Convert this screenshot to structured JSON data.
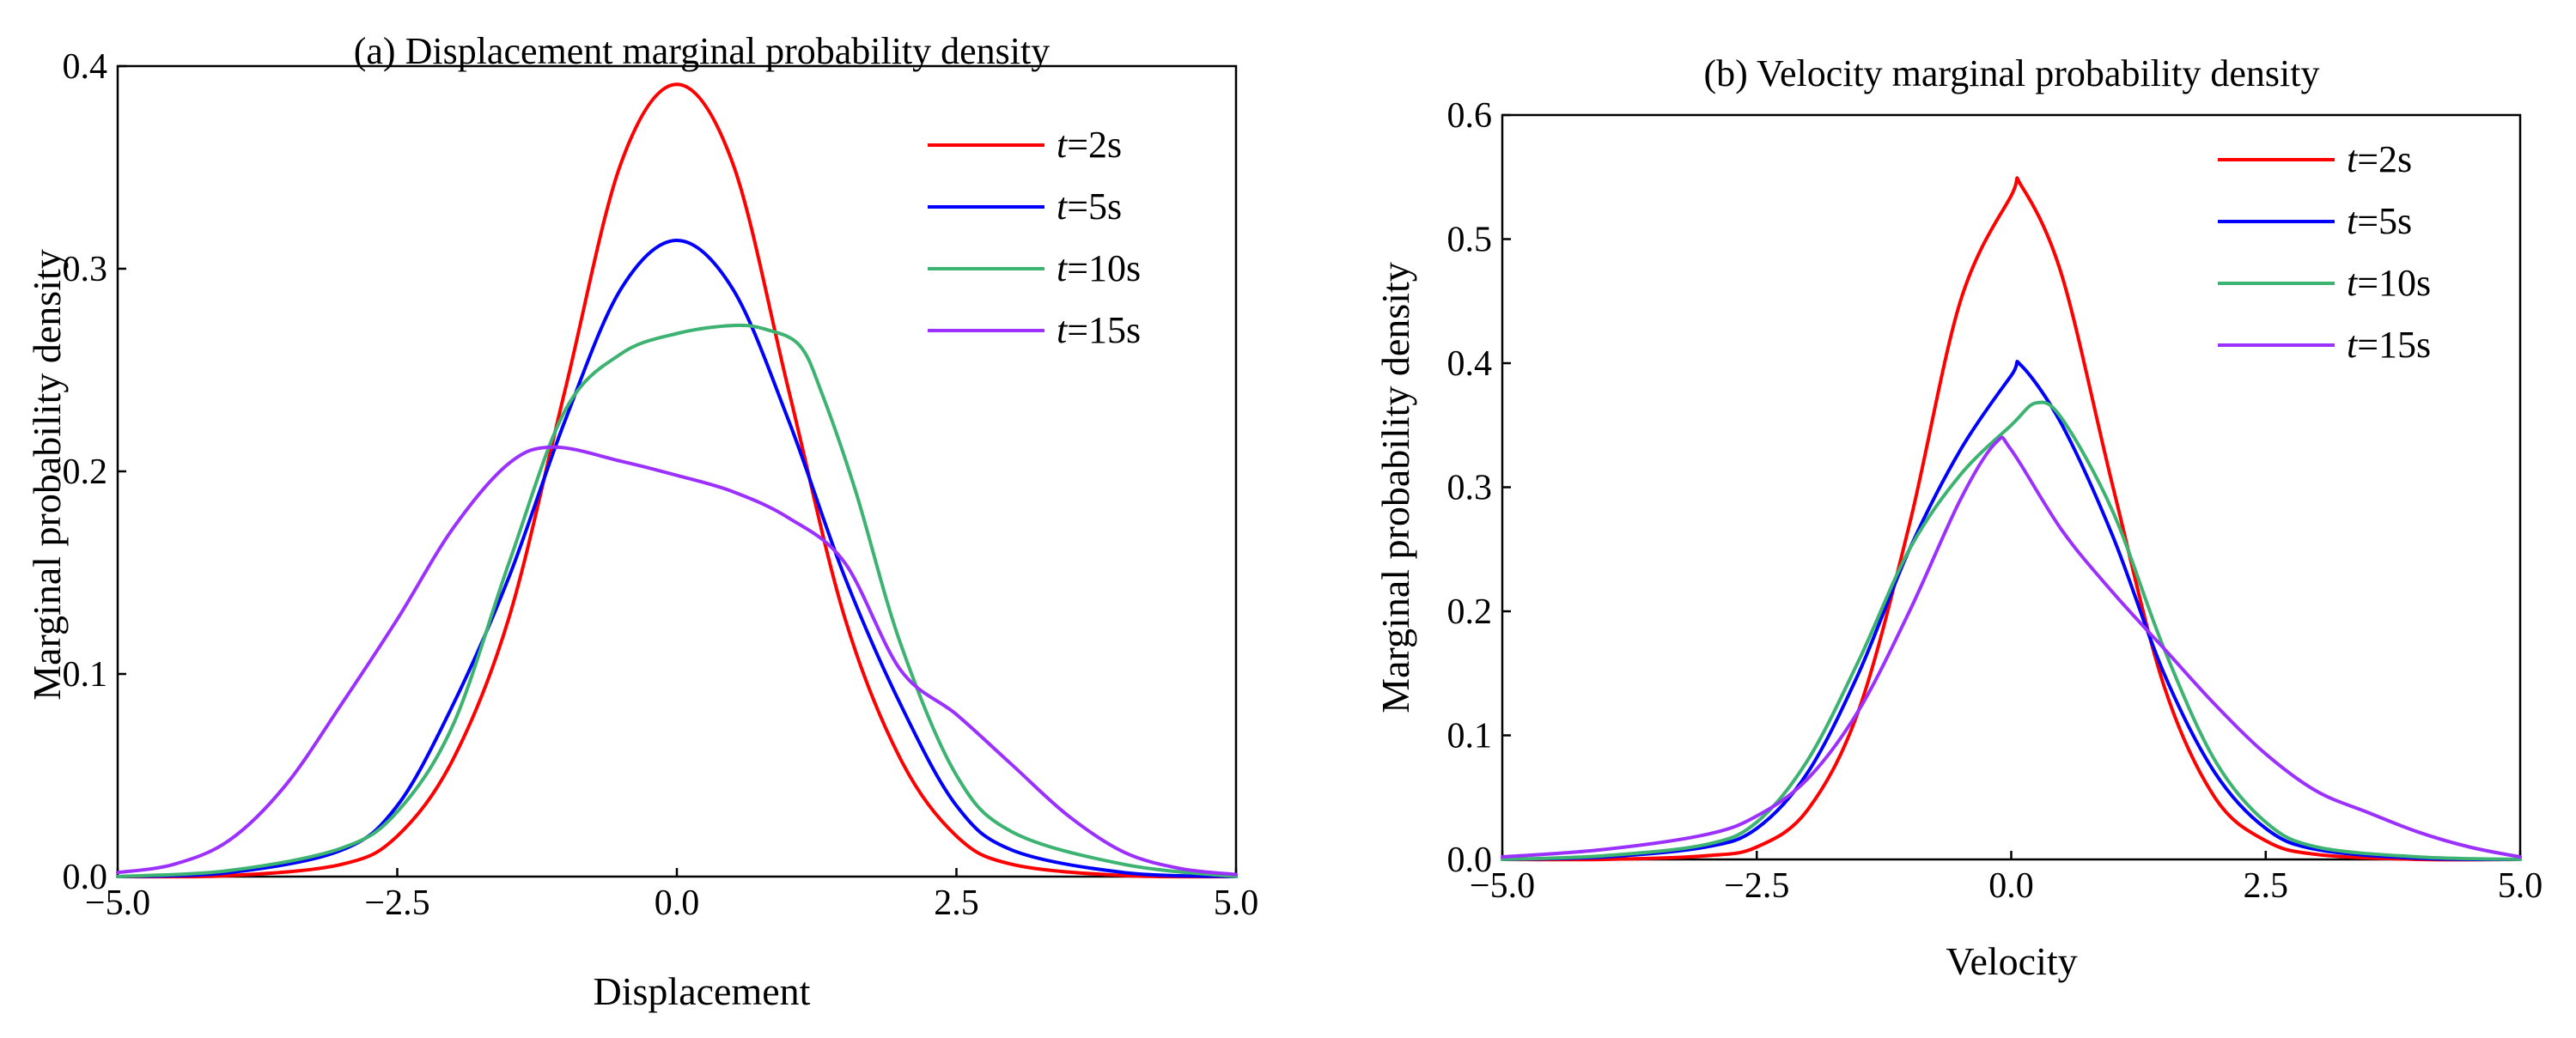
{
  "chart_data": [
    {
      "type": "line",
      "title": "(a) Displacement marginal probability density",
      "xlabel": "Displacement",
      "ylabel": "Marginal probability density",
      "xlim": [
        -5.0,
        5.0
      ],
      "ylim": [
        0.0,
        0.4
      ],
      "xticks": [
        "−5.0",
        "−2.5",
        "0.0",
        "2.5",
        "5.0"
      ],
      "yticks": [
        "0.0",
        "0.1",
        "0.2",
        "0.3",
        "0.4"
      ],
      "legend_position": "top-right",
      "series": [
        {
          "name": "t=2s",
          "legend_var": "t",
          "legend_rest": "=2s",
          "color": "#ff0000",
          "x": [
            -5,
            -4,
            -3,
            -2.5,
            -2,
            -1.5,
            -1,
            -0.5,
            0,
            0.5,
            1,
            1.5,
            2,
            2.5,
            3,
            4,
            5
          ],
          "y": [
            0.0,
            0.0005,
            0.006,
            0.02,
            0.058,
            0.128,
            0.24,
            0.352,
            0.391,
            0.352,
            0.24,
            0.128,
            0.058,
            0.02,
            0.006,
            0.0005,
            0.0
          ]
        },
        {
          "name": "t=5s",
          "legend_var": "t",
          "legend_rest": "=5s",
          "color": "#0000ff",
          "x": [
            -5,
            -4,
            -3,
            -2.5,
            -2,
            -1.5,
            -1,
            -0.5,
            0,
            0.5,
            1,
            1.5,
            2,
            2.5,
            3,
            4,
            5
          ],
          "y": [
            0.0,
            0.002,
            0.013,
            0.035,
            0.085,
            0.148,
            0.225,
            0.29,
            0.314,
            0.29,
            0.225,
            0.148,
            0.085,
            0.035,
            0.013,
            0.002,
            0.0
          ]
        },
        {
          "name": "t=10s",
          "legend_var": "t",
          "legend_rest": "=10s",
          "color": "#3cb371",
          "x": [
            -5,
            -4,
            -3,
            -2.5,
            -2,
            -1.5,
            -1,
            -0.5,
            0,
            0.5,
            0.8,
            1.1,
            1.3,
            1.6,
            2,
            2.5,
            3,
            4,
            5
          ],
          "y": [
            0.0,
            0.003,
            0.014,
            0.032,
            0.075,
            0.155,
            0.23,
            0.258,
            0.268,
            0.272,
            0.27,
            0.262,
            0.238,
            0.19,
            0.115,
            0.05,
            0.022,
            0.006,
            0.0
          ]
        },
        {
          "name": "t=15s",
          "legend_var": "t",
          "legend_rest": "=15s",
          "color": "#9b30ff",
          "x": [
            -5,
            -4.5,
            -4,
            -3.5,
            -3,
            -2.5,
            -2,
            -1.5,
            -1.1,
            -0.5,
            0,
            0.5,
            1,
            1.5,
            2,
            2.5,
            3,
            3.5,
            4,
            4.5,
            5
          ],
          "y": [
            0.002,
            0.006,
            0.018,
            0.045,
            0.085,
            0.127,
            0.172,
            0.204,
            0.212,
            0.205,
            0.198,
            0.19,
            0.177,
            0.155,
            0.102,
            0.08,
            0.055,
            0.03,
            0.012,
            0.004,
            0.001
          ]
        }
      ]
    },
    {
      "type": "line",
      "title": "(b) Velocity marginal probability density",
      "xlabel": "Velocity",
      "ylabel": "Marginal probability density",
      "xlim": [
        -5.0,
        5.0
      ],
      "ylim": [
        0.0,
        0.6
      ],
      "xticks": [
        "−5.0",
        "−2.5",
        "0.0",
        "2.5",
        "5.0"
      ],
      "yticks": [
        "0.0",
        "0.1",
        "0.2",
        "0.3",
        "0.4",
        "0.5",
        "0.6"
      ],
      "legend_position": "top-right",
      "series": [
        {
          "name": "t=2s",
          "legend_var": "t",
          "legend_rest": "=2s",
          "color": "#ff0000",
          "x": [
            -5,
            -4,
            -3,
            -2.5,
            -2,
            -1.5,
            -1,
            -0.5,
            0,
            0.1,
            0.5,
            1,
            1.5,
            2,
            2.5,
            3,
            4,
            5
          ],
          "y": [
            0.0,
            0.0,
            0.003,
            0.01,
            0.04,
            0.12,
            0.27,
            0.45,
            0.535,
            0.543,
            0.47,
            0.3,
            0.14,
            0.05,
            0.015,
            0.004,
            0.0,
            0.0
          ]
        },
        {
          "name": "t=5s",
          "legend_var": "t",
          "legend_rest": "=5s",
          "color": "#0000ff",
          "x": [
            -5,
            -4,
            -3,
            -2.5,
            -2,
            -1.5,
            -1,
            -0.5,
            0,
            0.1,
            0.5,
            1,
            1.5,
            2,
            2.5,
            3,
            4,
            5
          ],
          "y": [
            0.0,
            0.002,
            0.01,
            0.025,
            0.07,
            0.15,
            0.25,
            0.33,
            0.39,
            0.398,
            0.35,
            0.26,
            0.15,
            0.07,
            0.025,
            0.008,
            0.001,
            0.0
          ]
        },
        {
          "name": "t=10s",
          "legend_var": "t",
          "legend_rest": "=10s",
          "color": "#3cb371",
          "x": [
            -5,
            -4,
            -3,
            -2.5,
            -2,
            -1.5,
            -1,
            -0.5,
            0,
            0.25,
            0.5,
            1,
            1.5,
            2,
            2.5,
            3,
            4,
            5
          ],
          "y": [
            0.0,
            0.003,
            0.012,
            0.03,
            0.08,
            0.16,
            0.25,
            0.31,
            0.35,
            0.368,
            0.355,
            0.28,
            0.17,
            0.08,
            0.03,
            0.01,
            0.002,
            0.0
          ]
        },
        {
          "name": "t=15s",
          "legend_var": "t",
          "legend_rest": "=15s",
          "color": "#9b30ff",
          "x": [
            -5,
            -4,
            -3,
            -2.5,
            -2,
            -1.5,
            -1,
            -0.5,
            -0.15,
            0,
            0.5,
            1,
            1.5,
            2,
            2.5,
            3,
            3.5,
            4,
            4.5,
            5
          ],
          "y": [
            0.002,
            0.008,
            0.02,
            0.035,
            0.065,
            0.12,
            0.2,
            0.29,
            0.336,
            0.33,
            0.265,
            0.215,
            0.17,
            0.125,
            0.085,
            0.055,
            0.038,
            0.022,
            0.01,
            0.002
          ]
        }
      ]
    }
  ]
}
